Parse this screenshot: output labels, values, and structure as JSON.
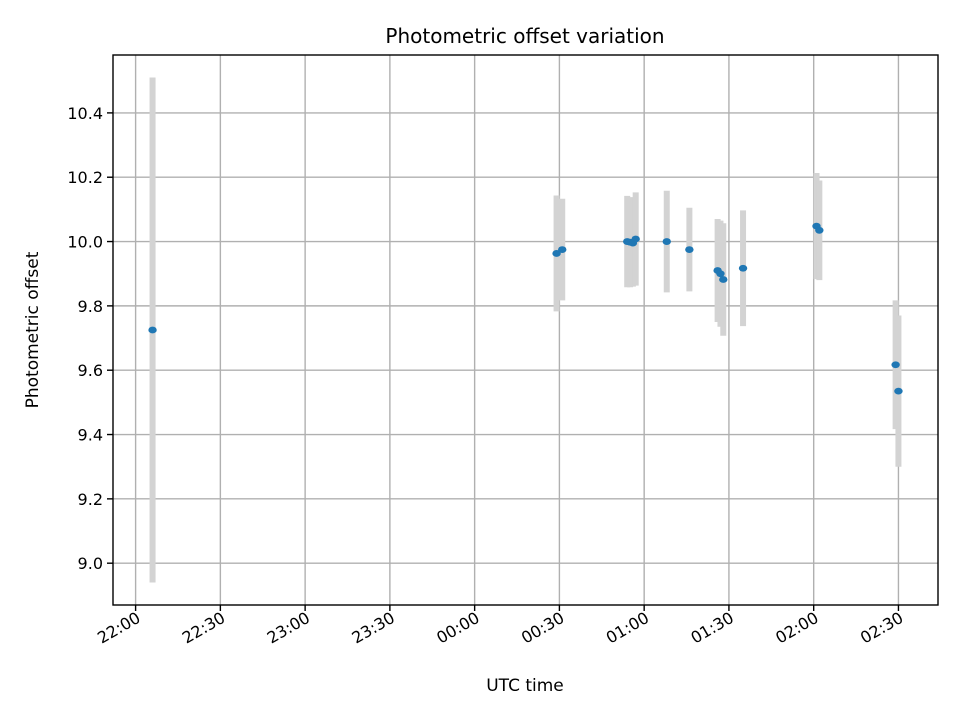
{
  "chart_data": {
    "type": "scatter",
    "title": "Photometric offset variation",
    "xlabel": "UTC time",
    "ylabel": "Photometric offset",
    "x_unit": "UTC time (HH:MM)",
    "xlim": [
      "21:52",
      "02:44"
    ],
    "ylim": [
      8.87,
      10.58
    ],
    "x_ticks": [
      "22:00",
      "22:30",
      "23:00",
      "23:30",
      "00:00",
      "00:30",
      "01:00",
      "01:30",
      "02:00",
      "02:30"
    ],
    "y_ticks": [
      "9.0",
      "9.2",
      "9.4",
      "9.6",
      "9.8",
      "10.0",
      "10.2",
      "10.4"
    ],
    "grid": true,
    "colors": {
      "points": "#1f77b4",
      "errorbars": "#d3d3d3"
    },
    "points": [
      {
        "x": "22:06",
        "y": 9.725,
        "err": 0.785
      },
      {
        "x": "00:29",
        "y": 9.963,
        "err": 0.18
      },
      {
        "x": "00:31",
        "y": 9.975,
        "err": 0.158
      },
      {
        "x": "00:54",
        "y": 10.0,
        "err": 0.142
      },
      {
        "x": "00:55",
        "y": 9.998,
        "err": 0.14
      },
      {
        "x": "00:56",
        "y": 9.995,
        "err": 0.135
      },
      {
        "x": "00:57",
        "y": 10.008,
        "err": 0.145
      },
      {
        "x": "01:08",
        "y": 10.0,
        "err": 0.158
      },
      {
        "x": "01:16",
        "y": 9.975,
        "err": 0.13
      },
      {
        "x": "01:26",
        "y": 9.91,
        "err": 0.16
      },
      {
        "x": "01:27",
        "y": 9.9,
        "err": 0.165
      },
      {
        "x": "01:28",
        "y": 9.882,
        "err": 0.175
      },
      {
        "x": "01:35",
        "y": 9.917,
        "err": 0.18
      },
      {
        "x": "02:01",
        "y": 10.048,
        "err": 0.165
      },
      {
        "x": "02:02",
        "y": 10.035,
        "err": 0.155
      },
      {
        "x": "02:29",
        "y": 9.617,
        "err": 0.2
      },
      {
        "x": "02:30",
        "y": 9.535,
        "err": 0.235
      }
    ]
  }
}
